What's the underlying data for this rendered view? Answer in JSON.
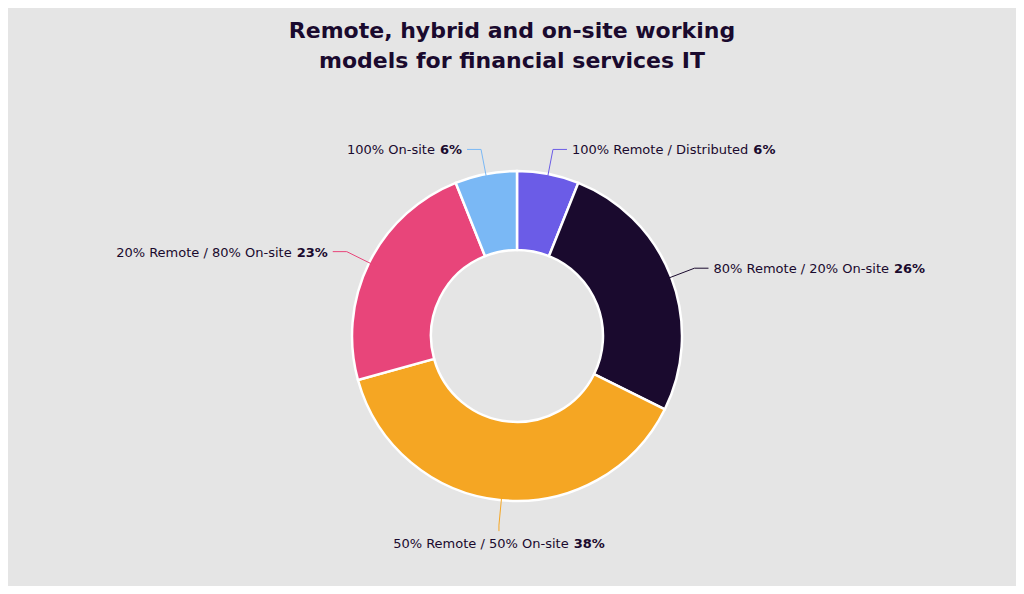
{
  "chart_data": {
    "type": "pie",
    "title": "Remote, hybrid and on-site working\nmodels for financial services IT",
    "categories": [
      "100% Remote / Distributed",
      "80% Remote / 20% On-site",
      "50% Remote / 50% On-site",
      "20% Remote / 80% On-site",
      "100% On-site"
    ],
    "values": [
      6,
      26,
      38,
      23,
      6
    ],
    "value_labels": [
      "6%",
      "26%",
      "38%",
      "23%",
      "6%"
    ],
    "colors": [
      "#6b5ce7",
      "#1a0a2e",
      "#f5a623",
      "#e8457a",
      "#7ab8f5"
    ],
    "data_labels": true
  }
}
